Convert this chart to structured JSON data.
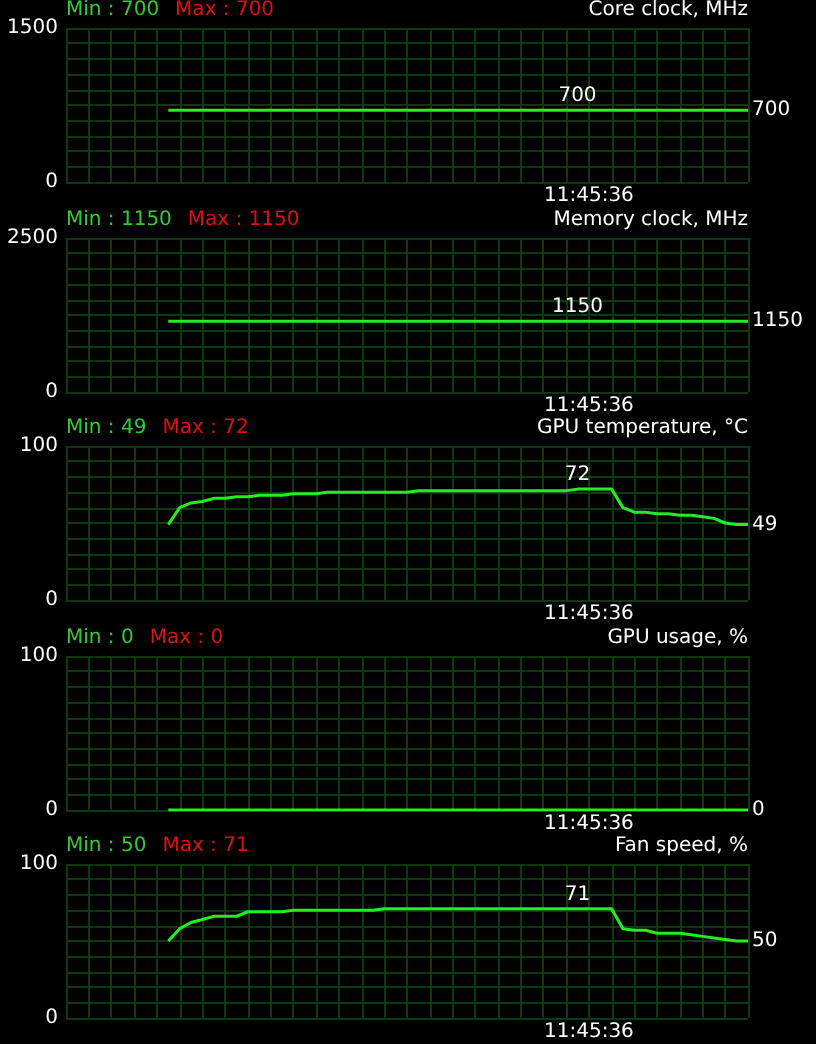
{
  "chart_data": [
    {
      "type": "line",
      "title": "Core clock, MHz",
      "annotations": [
        "Min : 700",
        "Max : 700",
        "11:45:36"
      ],
      "tick_labels": "y",
      "grid": true,
      "marker": "none",
      "ylim": [
        0,
        1500
      ],
      "yticks": [
        0,
        {
          "value": 150,
          "label": null
        },
        {
          "value": 300,
          "label": null
        },
        {
          "value": 450,
          "label": null
        },
        {
          "value": 600,
          "label": null
        },
        {
          "value": 750,
          "label": null
        },
        {
          "value": 900,
          "label": null
        },
        {
          "value": 1050,
          "label": null
        },
        {
          "value": 1200,
          "label": null
        },
        {
          "value": 1350,
          "label": null
        },
        1500
      ],
      "categories": [
        null,
        null,
        null,
        null,
        null,
        null,
        null,
        null,
        null,
        null,
        null,
        null,
        null,
        null,
        null,
        null,
        null,
        null,
        null,
        null,
        null,
        null,
        null,
        null,
        null,
        null,
        null,
        null,
        null,
        null,
        null,
        null,
        null,
        null,
        null,
        null,
        null,
        null,
        null,
        null,
        null,
        null,
        null,
        null,
        null,
        null,
        null,
        null,
        null,
        null,
        null,
        null,
        null,
        null,
        null,
        null,
        null,
        null,
        null,
        null,
        null
      ],
      "series": [
        {
          "color": "#22ee22",
          "values": [
            null,
            null,
            null,
            null,
            null,
            null,
            null,
            null,
            null,
            700,
            700,
            700,
            700,
            700,
            700,
            700,
            700,
            700,
            700,
            700,
            700,
            700,
            700,
            700,
            700,
            700,
            700,
            700,
            700,
            700,
            700,
            700,
            700,
            700,
            700,
            700,
            700,
            700,
            700,
            700,
            700,
            700,
            700,
            700,
            700,
            700,
            700,
            700,
            700,
            700,
            700,
            700,
            700,
            700,
            700,
            700,
            700,
            700,
            700,
            700,
            700
          ],
          "value_labels": [
            null,
            null,
            null,
            null,
            null,
            null,
            null,
            null,
            null,
            null,
            null,
            null,
            null,
            null,
            null,
            null,
            null,
            null,
            null,
            null,
            null,
            null,
            null,
            null,
            null,
            null,
            null,
            null,
            null,
            null,
            null,
            null,
            null,
            null,
            null,
            null,
            null,
            null,
            null,
            null,
            null,
            null,
            null,
            null,
            null,
            "700",
            null,
            null,
            null,
            null,
            null,
            null,
            null,
            null,
            null,
            null,
            null,
            null,
            null,
            null,
            "700"
          ]
        }
      ]
    },
    {
      "type": "line",
      "title": "Memory clock, MHz",
      "annotations": [
        "Min : 1150",
        "Max : 1150",
        "11:45:36"
      ],
      "tick_labels": "y",
      "grid": true,
      "marker": "none",
      "ylim": [
        0,
        2500
      ],
      "yticks": [
        0,
        {
          "value": 250,
          "label": null
        },
        {
          "value": 500,
          "label": null
        },
        {
          "value": 750,
          "label": null
        },
        {
          "value": 1000,
          "label": null
        },
        {
          "value": 1250,
          "label": null
        },
        {
          "value": 1500,
          "label": null
        },
        {
          "value": 1750,
          "label": null
        },
        {
          "value": 2000,
          "label": null
        },
        {
          "value": 2250,
          "label": null
        },
        2500
      ],
      "categories": [
        null,
        null,
        null,
        null,
        null,
        null,
        null,
        null,
        null,
        null,
        null,
        null,
        null,
        null,
        null,
        null,
        null,
        null,
        null,
        null,
        null,
        null,
        null,
        null,
        null,
        null,
        null,
        null,
        null,
        null,
        null,
        null,
        null,
        null,
        null,
        null,
        null,
        null,
        null,
        null,
        null,
        null,
        null,
        null,
        null,
        null,
        null,
        null,
        null,
        null,
        null,
        null,
        null,
        null,
        null,
        null,
        null,
        null,
        null,
        null,
        null
      ],
      "series": [
        {
          "color": "#22ee22",
          "values": [
            null,
            null,
            null,
            null,
            null,
            null,
            null,
            null,
            null,
            1150,
            1150,
            1150,
            1150,
            1150,
            1150,
            1150,
            1150,
            1150,
            1150,
            1150,
            1150,
            1150,
            1150,
            1150,
            1150,
            1150,
            1150,
            1150,
            1150,
            1150,
            1150,
            1150,
            1150,
            1150,
            1150,
            1150,
            1150,
            1150,
            1150,
            1150,
            1150,
            1150,
            1150,
            1150,
            1150,
            1150,
            1150,
            1150,
            1150,
            1150,
            1150,
            1150,
            1150,
            1150,
            1150,
            1150,
            1150,
            1150,
            1150,
            1150,
            1150
          ],
          "value_labels": [
            null,
            null,
            null,
            null,
            null,
            null,
            null,
            null,
            null,
            null,
            null,
            null,
            null,
            null,
            null,
            null,
            null,
            null,
            null,
            null,
            null,
            null,
            null,
            null,
            null,
            null,
            null,
            null,
            null,
            null,
            null,
            null,
            null,
            null,
            null,
            null,
            null,
            null,
            null,
            null,
            null,
            null,
            null,
            null,
            null,
            "1150",
            null,
            null,
            null,
            null,
            null,
            null,
            null,
            null,
            null,
            null,
            null,
            null,
            null,
            null,
            "1150"
          ]
        }
      ]
    },
    {
      "type": "line",
      "title": "GPU temperature, °C",
      "annotations": [
        "Min : 49",
        "Max : 72",
        "11:45:36"
      ],
      "tick_labels": "y",
      "grid": true,
      "marker": "none",
      "ylim": [
        0,
        100
      ],
      "yticks": [
        0,
        {
          "value": 10,
          "label": null
        },
        {
          "value": 20,
          "label": null
        },
        {
          "value": 30,
          "label": null
        },
        {
          "value": 40,
          "label": null
        },
        {
          "value": 50,
          "label": null
        },
        {
          "value": 60,
          "label": null
        },
        {
          "value": 70,
          "label": null
        },
        {
          "value": 80,
          "label": null
        },
        {
          "value": 90,
          "label": null
        },
        100
      ],
      "categories": [
        null,
        null,
        null,
        null,
        null,
        null,
        null,
        null,
        null,
        null,
        null,
        null,
        null,
        null,
        null,
        null,
        null,
        null,
        null,
        null,
        null,
        null,
        null,
        null,
        null,
        null,
        null,
        null,
        null,
        null,
        null,
        null,
        null,
        null,
        null,
        null,
        null,
        null,
        null,
        null,
        null,
        null,
        null,
        null,
        null,
        null,
        null,
        null,
        null,
        null,
        null,
        null,
        null,
        null,
        null,
        null,
        null,
        null,
        null,
        null,
        null
      ],
      "series": [
        {
          "color": "#22ee22",
          "values": [
            null,
            null,
            null,
            null,
            null,
            null,
            null,
            null,
            null,
            49,
            60,
            63,
            64,
            66,
            66,
            67,
            67,
            68,
            68,
            68,
            69,
            69,
            69,
            70,
            70,
            70,
            70,
            70,
            70,
            70,
            70,
            71,
            71,
            71,
            71,
            71,
            71,
            71,
            71,
            71,
            71,
            71,
            71,
            71,
            71,
            72,
            72,
            72,
            72,
            60,
            57,
            57,
            56,
            56,
            55,
            55,
            54,
            53,
            50,
            49,
            49
          ],
          "value_labels": [
            null,
            null,
            null,
            null,
            null,
            null,
            null,
            null,
            null,
            null,
            null,
            null,
            null,
            null,
            null,
            null,
            null,
            null,
            null,
            null,
            null,
            null,
            null,
            null,
            null,
            null,
            null,
            null,
            null,
            null,
            null,
            null,
            null,
            null,
            null,
            null,
            null,
            null,
            null,
            null,
            null,
            null,
            null,
            null,
            null,
            "72",
            null,
            null,
            null,
            null,
            null,
            null,
            null,
            null,
            null,
            null,
            null,
            null,
            null,
            null,
            "49"
          ]
        }
      ]
    },
    {
      "type": "line",
      "title": "GPU usage, %",
      "annotations": [
        "Min : 0",
        "Max : 0",
        "11:45:36"
      ],
      "tick_labels": "y",
      "grid": true,
      "marker": "none",
      "ylim": [
        0,
        100
      ],
      "yticks": [
        0,
        {
          "value": 10,
          "label": null
        },
        {
          "value": 20,
          "label": null
        },
        {
          "value": 30,
          "label": null
        },
        {
          "value": 40,
          "label": null
        },
        {
          "value": 50,
          "label": null
        },
        {
          "value": 60,
          "label": null
        },
        {
          "value": 70,
          "label": null
        },
        {
          "value": 80,
          "label": null
        },
        {
          "value": 90,
          "label": null
        },
        100
      ],
      "categories": [
        null,
        null,
        null,
        null,
        null,
        null,
        null,
        null,
        null,
        null,
        null,
        null,
        null,
        null,
        null,
        null,
        null,
        null,
        null,
        null,
        null,
        null,
        null,
        null,
        null,
        null,
        null,
        null,
        null,
        null,
        null,
        null,
        null,
        null,
        null,
        null,
        null,
        null,
        null,
        null,
        null,
        null,
        null,
        null,
        null,
        null,
        null,
        null,
        null,
        null,
        null,
        null,
        null,
        null,
        null,
        null,
        null,
        null,
        null,
        null,
        null
      ],
      "series": [
        {
          "color": "#22ee22",
          "values": [
            null,
            null,
            null,
            null,
            null,
            null,
            null,
            null,
            null,
            0,
            0,
            0,
            0,
            0,
            0,
            0,
            0,
            0,
            0,
            0,
            0,
            0,
            0,
            0,
            0,
            0,
            0,
            0,
            0,
            0,
            0,
            0,
            0,
            0,
            0,
            0,
            0,
            0,
            0,
            0,
            0,
            0,
            0,
            0,
            0,
            0,
            0,
            0,
            0,
            0,
            0,
            0,
            0,
            0,
            0,
            0,
            0,
            0,
            0,
            0,
            0
          ],
          "value_labels": [
            null,
            null,
            null,
            null,
            null,
            null,
            null,
            null,
            null,
            null,
            null,
            null,
            null,
            null,
            null,
            null,
            null,
            null,
            null,
            null,
            null,
            null,
            null,
            null,
            null,
            null,
            null,
            null,
            null,
            null,
            null,
            null,
            null,
            null,
            null,
            null,
            null,
            null,
            null,
            null,
            null,
            null,
            null,
            null,
            null,
            null,
            null,
            null,
            null,
            null,
            null,
            null,
            null,
            null,
            null,
            null,
            null,
            null,
            null,
            null,
            "0"
          ]
        }
      ]
    },
    {
      "type": "line",
      "title": "Fan speed, %",
      "annotations": [
        "Min : 50",
        "Max : 71",
        "11:45:36"
      ],
      "tick_labels": "y",
      "grid": true,
      "marker": "none",
      "ylim": [
        0,
        100
      ],
      "yticks": [
        0,
        {
          "value": 10,
          "label": null
        },
        {
          "value": 20,
          "label": null
        },
        {
          "value": 30,
          "label": null
        },
        {
          "value": 40,
          "label": null
        },
        {
          "value": 50,
          "label": null
        },
        {
          "value": 60,
          "label": null
        },
        {
          "value": 70,
          "label": null
        },
        {
          "value": 80,
          "label": null
        },
        {
          "value": 90,
          "label": null
        },
        100
      ],
      "categories": [
        null,
        null,
        null,
        null,
        null,
        null,
        null,
        null,
        null,
        null,
        null,
        null,
        null,
        null,
        null,
        null,
        null,
        null,
        null,
        null,
        null,
        null,
        null,
        null,
        null,
        null,
        null,
        null,
        null,
        null,
        null,
        null,
        null,
        null,
        null,
        null,
        null,
        null,
        null,
        null,
        null,
        null,
        null,
        null,
        null,
        null,
        null,
        null,
        null,
        null,
        null,
        null,
        null,
        null,
        null,
        null,
        null,
        null,
        null,
        null,
        null
      ],
      "series": [
        {
          "color": "#22ee22",
          "values": [
            null,
            null,
            null,
            null,
            null,
            null,
            null,
            null,
            null,
            50,
            58,
            62,
            64,
            66,
            66,
            66,
            69,
            69,
            69,
            69,
            70,
            70,
            70,
            70,
            70,
            70,
            70,
            70,
            71,
            71,
            71,
            71,
            71,
            71,
            71,
            71,
            71,
            71,
            71,
            71,
            71,
            71,
            71,
            71,
            71,
            71,
            71,
            71,
            71,
            58,
            57,
            57,
            55,
            55,
            55,
            54,
            53,
            52,
            51,
            50,
            50
          ],
          "value_labels": [
            null,
            null,
            null,
            null,
            null,
            null,
            null,
            null,
            null,
            null,
            null,
            null,
            null,
            null,
            null,
            null,
            null,
            null,
            null,
            null,
            null,
            null,
            null,
            null,
            null,
            null,
            null,
            null,
            null,
            null,
            null,
            null,
            null,
            null,
            null,
            null,
            null,
            null,
            null,
            null,
            null,
            null,
            null,
            null,
            null,
            "71",
            null,
            null,
            null,
            null,
            null,
            null,
            null,
            null,
            null,
            null,
            null,
            null,
            null,
            null,
            "50"
          ]
        }
      ]
    }
  ]
}
